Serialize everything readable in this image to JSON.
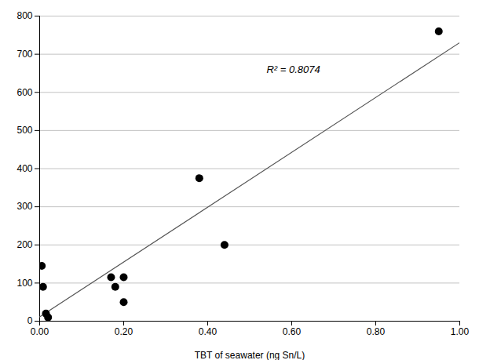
{
  "chart_data": {
    "type": "scatter",
    "x": [
      0.005,
      0.008,
      0.015,
      0.02,
      0.17,
      0.18,
      0.2,
      0.2,
      0.38,
      0.44,
      0.95
    ],
    "values": [
      145,
      90,
      20,
      10,
      115,
      90,
      50,
      115,
      375,
      200,
      760
    ],
    "color": "#000000",
    "marker": "circle",
    "trendline": {
      "x": [
        0.0,
        1.0
      ],
      "values": [
        11.144,
        730.541
      ],
      "color": "#555555",
      "line_style": "solid"
    },
    "xlabel": "TBT of seawater (ng Sn/L)",
    "xlim": [
      0.0,
      1.0
    ],
    "ylim": [
      0,
      800
    ],
    "xticks": [
      {
        "value": 0.0,
        "label": "0.00"
      },
      {
        "value": 0.2,
        "label": "0.20"
      },
      {
        "value": 0.4,
        "label": "0.40"
      },
      {
        "value": 0.6,
        "label": "0.60"
      },
      {
        "value": 0.8,
        "label": "0.80"
      },
      {
        "value": 1.0,
        "label": "1.00"
      }
    ],
    "yticks": [
      0,
      100,
      200,
      300,
      400,
      500,
      600,
      700,
      800
    ],
    "annotations": [
      {
        "text": "R² = 0.8074",
        "x": 0.54,
        "y": 650
      }
    ],
    "grid": "y"
  }
}
